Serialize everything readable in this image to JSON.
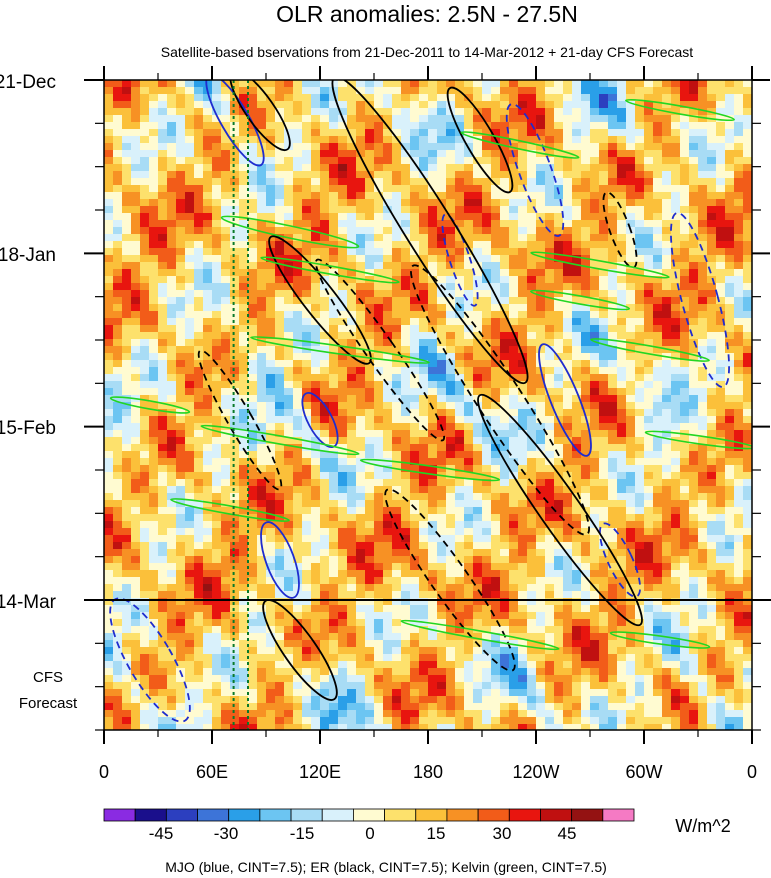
{
  "chart_data": {
    "type": "heatmap",
    "title": "OLR anomalies: 2.5N - 27.5N",
    "subtitle": "Satellite-based bservations from 21-Dec-2011 to 14-Mar-2012 + 21-day CFS Forecast",
    "y_ticks": [
      "21-Dec",
      "18-Jan",
      "15-Feb",
      "14-Mar"
    ],
    "y_tick_days": [
      0,
      28,
      56,
      84
    ],
    "y_range_days": [
      0,
      105
    ],
    "forecast_start_day": 84,
    "forecast_label_line1": "CFS",
    "forecast_label_line2": "Forecast",
    "x_ticks": [
      "0",
      "60E",
      "120E",
      "180",
      "120W",
      "60W",
      "0"
    ],
    "x_tick_lons": [
      0,
      60,
      120,
      180,
      240,
      300,
      360
    ],
    "x_range_lon": [
      0,
      360
    ],
    "marker_lons": [
      72,
      80
    ],
    "colorbar": {
      "levels": [
        -60,
        -52.5,
        -45,
        -37.5,
        -30,
        -22.5,
        -15,
        -7.5,
        0,
        7.5,
        15,
        22.5,
        30,
        37.5,
        45,
        52.5,
        60
      ],
      "labels": [
        "-45",
        "-30",
        "-15",
        "0",
        "15",
        "30",
        "45"
      ],
      "label_values": [
        -45,
        -30,
        -15,
        0,
        15,
        30,
        45
      ],
      "colors": [
        "#8a2be2",
        "#1a0f8c",
        "#2c3fbf",
        "#3d74d8",
        "#2a9fe8",
        "#6cc5f2",
        "#a8dcf5",
        "#d9f1fb",
        "#fffbd1",
        "#fde16c",
        "#fbc03a",
        "#f79124",
        "#f25c19",
        "#e8150f",
        "#c01010",
        "#941212",
        "#f57ac4"
      ],
      "units": "W/m^2"
    },
    "contour_legend": "MJO (blue, CINT=7.5); ER (black, CINT=7.5); Kelvin (green, CINT=7.5)",
    "contour_colors": {
      "mjo": "#1f2ccf",
      "er": "#000000",
      "kelvin": "#22d622"
    }
  }
}
